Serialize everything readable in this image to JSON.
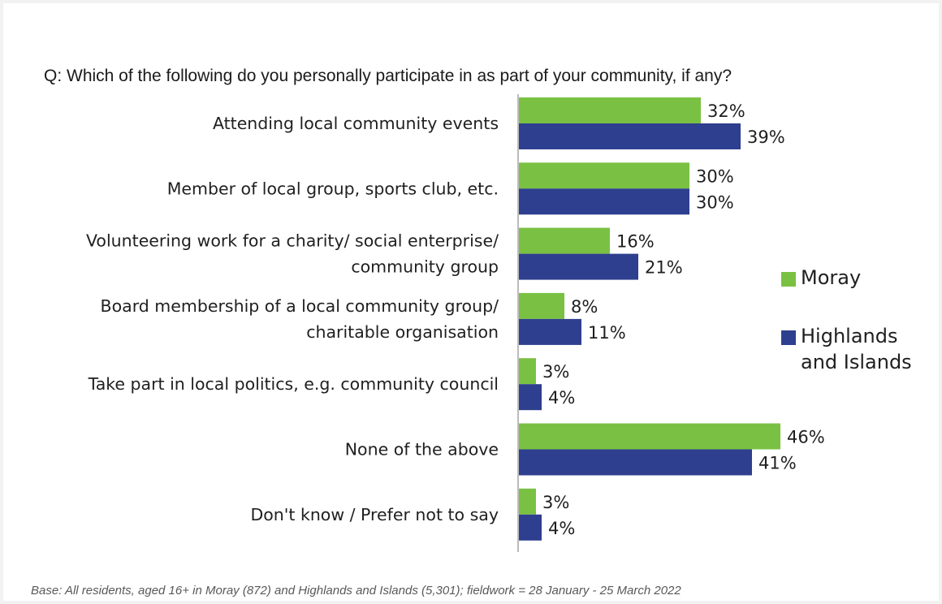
{
  "question": "Q: Which of the following do you personally participate in as part of your community, if any?",
  "footnote": "Base: All residents, aged 16+ in Moray (872) and Highlands and Islands (5,301); fieldwork = 28 January - 25 March 2022",
  "chart_data": {
    "type": "bar",
    "orientation": "horizontal",
    "categories": [
      [
        "Attending local community events"
      ],
      [
        "Member of local group, sports club, etc."
      ],
      [
        "Volunteering work for a charity/ social enterprise/",
        "community group"
      ],
      [
        "Board membership of a local community group/",
        "charitable organisation"
      ],
      [
        "Take part in local politics, e.g. community council"
      ],
      [
        "None of the above"
      ],
      [
        "Don't know / Prefer not to say"
      ]
    ],
    "series": [
      {
        "name": "Moray",
        "color": "#7ac143",
        "values": [
          32,
          30,
          16,
          8,
          3,
          46,
          3
        ]
      },
      {
        "name": "Highlands and Islands",
        "color": "#2e3f8f",
        "values": [
          39,
          30,
          21,
          11,
          4,
          41,
          4
        ]
      }
    ],
    "value_suffix": "%",
    "xlim": [
      0,
      50
    ],
    "grid": false,
    "legend_position": "right"
  },
  "legend": {
    "items": [
      {
        "lines": [
          "Moray"
        ],
        "color": "#7ac143"
      },
      {
        "lines": [
          "Highlands",
          "and Islands"
        ],
        "color": "#2e3f8f"
      }
    ]
  }
}
